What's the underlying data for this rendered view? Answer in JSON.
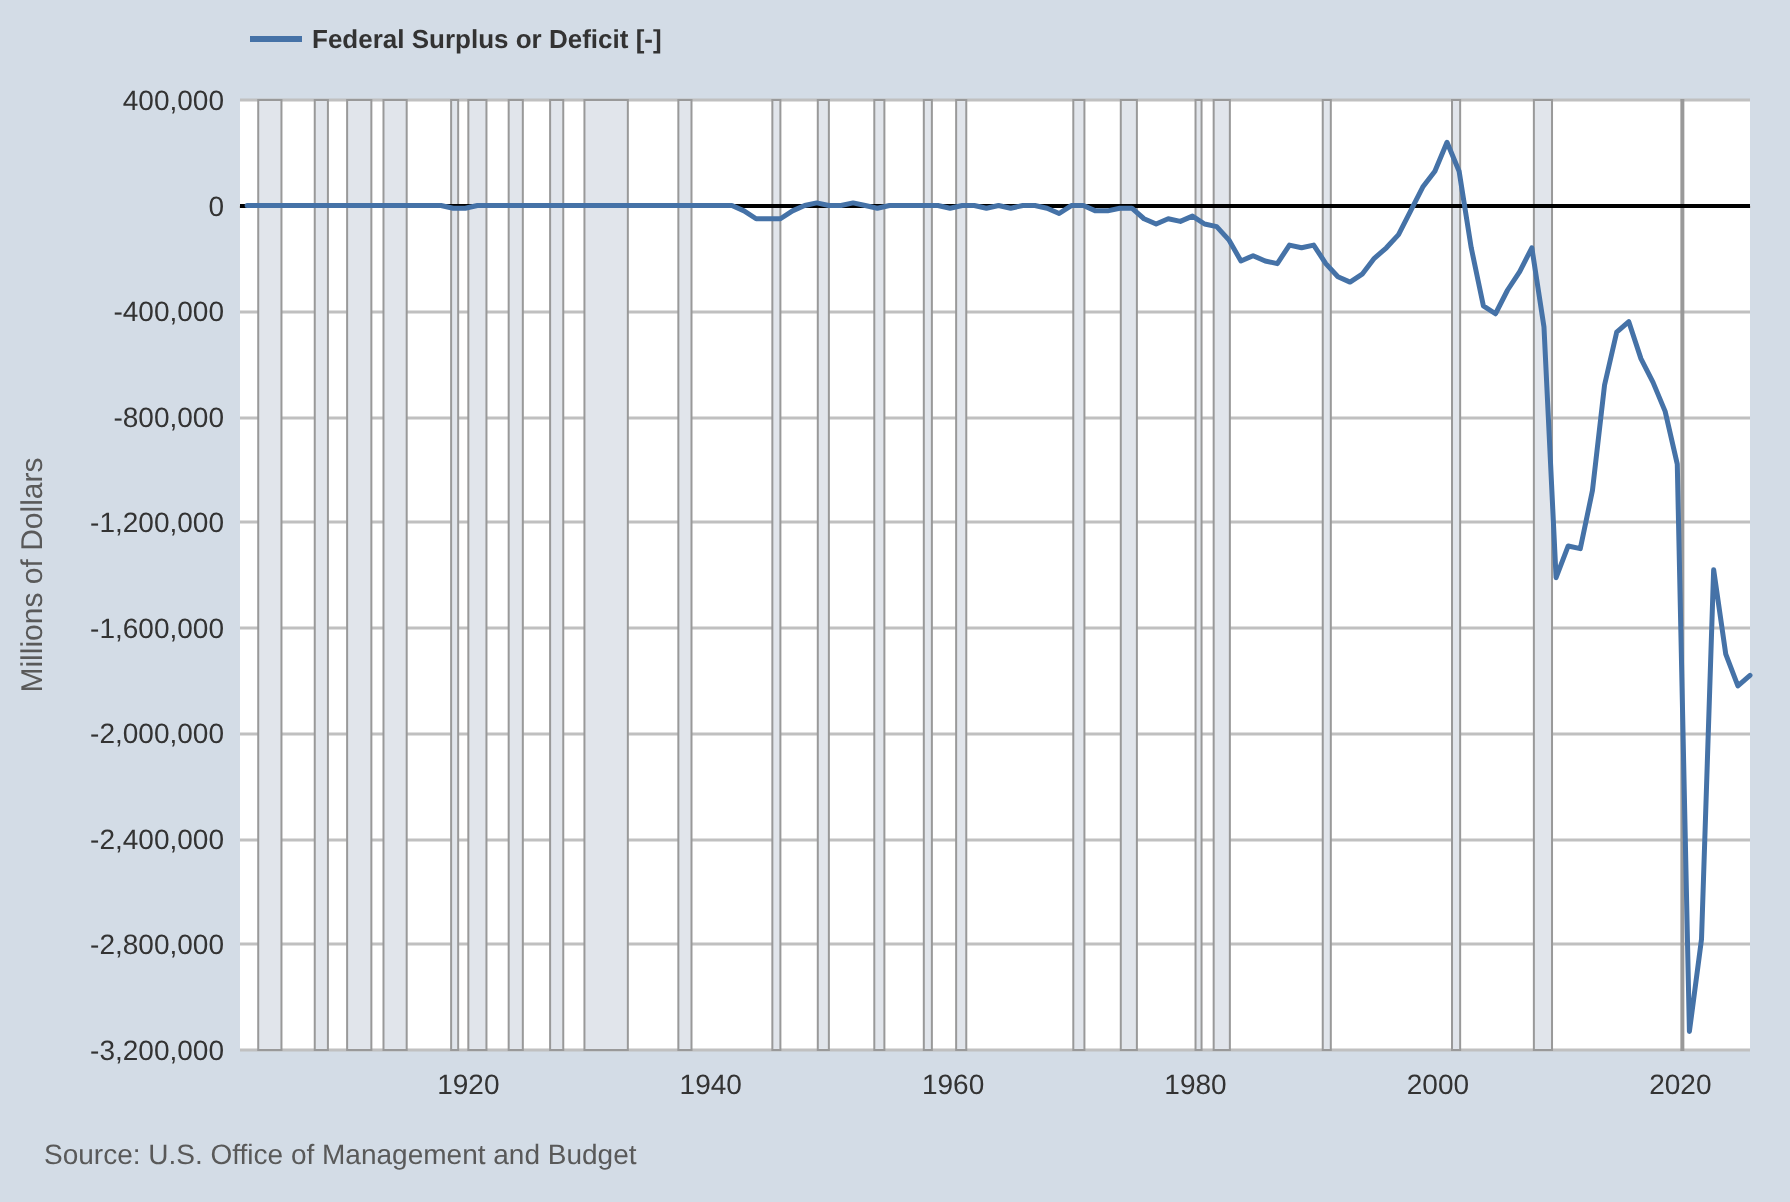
{
  "chart_data": {
    "type": "line",
    "ylabel": "Millions of Dollars",
    "annotations": [
      "Source: U.S. Office of Management and Budget"
    ],
    "x": [
      "1901-10-01",
      "1902-10-01",
      "1903-10-01",
      "1904-10-01",
      "1905-10-01",
      "1906-10-01",
      "1907-10-01",
      "1908-10-01",
      "1909-10-01",
      "1910-10-01",
      "1911-10-01",
      "1912-10-01",
      "1913-10-01",
      "1914-10-01",
      "1915-10-01",
      "1916-10-01",
      "1917-10-01",
      "1918-10-01",
      "1919-10-01",
      "1920-10-01",
      "1921-10-01",
      "1922-10-01",
      "1923-10-01",
      "1924-10-01",
      "1925-10-01",
      "1926-10-01",
      "1927-10-01",
      "1928-10-01",
      "1929-10-01",
      "1930-10-01",
      "1931-10-01",
      "1932-10-01",
      "1933-10-01",
      "1934-10-01",
      "1935-10-01",
      "1936-10-01",
      "1937-10-01",
      "1938-10-01",
      "1939-10-01",
      "1940-10-01",
      "1941-10-01",
      "1942-10-01",
      "1943-10-01",
      "1944-10-01",
      "1945-10-01",
      "1946-10-01",
      "1947-10-01",
      "1948-10-01",
      "1949-10-01",
      "1950-10-01",
      "1951-10-01",
      "1952-10-01",
      "1953-10-01",
      "1954-10-01",
      "1955-10-01",
      "1956-10-01",
      "1957-10-01",
      "1958-10-01",
      "1959-10-01",
      "1960-10-01",
      "1961-10-01",
      "1962-10-01",
      "1963-10-01",
      "1964-10-01",
      "1965-10-01",
      "1966-10-01",
      "1967-10-01",
      "1968-10-01",
      "1969-10-01",
      "1970-10-01",
      "1971-10-01",
      "1972-10-01",
      "1973-10-01",
      "1974-10-01",
      "1975-10-01",
      "1976-10-01",
      "1977-10-01",
      "1978-10-01",
      "1979-10-01",
      "1980-10-01",
      "1981-10-01",
      "1982-10-01",
      "1983-10-01",
      "1984-10-01",
      "1985-10-01",
      "1986-10-01",
      "1987-10-01",
      "1988-10-01",
      "1989-10-01",
      "1990-10-01",
      "1991-10-01",
      "1992-10-01",
      "1993-10-01",
      "1994-10-01",
      "1995-10-01",
      "1996-10-01",
      "1997-10-01",
      "1998-10-01",
      "1999-10-01",
      "2000-10-01",
      "2001-10-01",
      "2002-10-01",
      "2003-10-01",
      "2004-10-01",
      "2005-10-01",
      "2006-10-01",
      "2007-10-01",
      "2008-10-01",
      "2009-10-01",
      "2010-10-01",
      "2011-10-01",
      "2012-10-01",
      "2013-10-01",
      "2014-10-01",
      "2015-10-01",
      "2016-10-01",
      "2017-10-01",
      "2018-10-01",
      "2019-10-01",
      "2020-10-01",
      "2021-10-01",
      "2022-10-01",
      "2023-10-01",
      "2024-10-01",
      "2025-10-01"
    ],
    "series": [
      {
        "name": "Federal Surplus or Deficit [-]",
        "color": "#4572a7",
        "values": [
          0,
          0,
          0,
          0,
          0,
          0,
          0,
          0,
          0,
          0,
          0,
          0,
          0,
          0,
          0,
          0,
          0,
          -10000,
          -10000,
          0,
          0,
          0,
          0,
          0,
          0,
          0,
          0,
          0,
          0,
          0,
          0,
          0,
          0,
          0,
          0,
          0,
          0,
          0,
          0,
          0,
          0,
          -20000,
          -50000,
          -50000,
          -50000,
          -20000,
          0,
          10000,
          0,
          0,
          10000,
          0,
          -10000,
          0,
          0,
          0,
          0,
          0,
          -10000,
          0,
          0,
          -10000,
          0,
          -10000,
          0,
          0,
          -10000,
          -30000,
          0,
          0,
          -20000,
          -20000,
          -10000,
          -10000,
          -50000,
          -70000,
          -50000,
          -60000,
          -40000,
          -70000,
          -80000,
          -130000,
          -210000,
          -190000,
          -210000,
          -220000,
          -150000,
          -160000,
          -150000,
          -220000,
          -270000,
          -290000,
          -260000,
          -200000,
          -160000,
          -110000,
          -20000,
          70000,
          130000,
          240000,
          130000,
          -160000,
          -380000,
          -410000,
          -320000,
          -250000,
          -160000,
          -460000,
          -1410000,
          -1290000,
          -1300000,
          -1080000,
          -680000,
          -480000,
          -440000,
          -580000,
          -670000,
          -780000,
          -980000,
          -3130000,
          -2780000,
          -1380000,
          -1700000,
          -1820000,
          -1780000
        ]
      }
    ],
    "xlim": [
      "1901-03-01",
      "2025-10-01"
    ],
    "xticks": [
      {
        "value": "1920-01-01",
        "label": "1920"
      },
      {
        "value": "1940-01-01",
        "label": "1940"
      },
      {
        "value": "1960-01-01",
        "label": "1960"
      },
      {
        "value": "1980-01-01",
        "label": "1980"
      },
      {
        "value": "2000-01-01",
        "label": "2000"
      },
      {
        "value": "2020-01-01",
        "label": "2020"
      }
    ],
    "ylim": [
      -3200000,
      400000
    ],
    "yticks": [
      {
        "value": -3200000,
        "label": "-3,200,000"
      },
      {
        "value": -2800000,
        "label": "-2,800,000"
      },
      {
        "value": -2400000,
        "label": "-2,400,000"
      },
      {
        "value": -2000000,
        "label": "-2,000,000"
      },
      {
        "value": -1600000,
        "label": "-1,600,000"
      },
      {
        "value": -1200000,
        "label": "-1,200,000"
      },
      {
        "value": -800000,
        "label": "-800,000"
      },
      {
        "value": -400000,
        "label": "-400,000"
      },
      {
        "value": 0,
        "label": "0"
      },
      {
        "value": 400000,
        "label": "400,000"
      }
    ],
    "ref_lines": [
      {
        "axis": "y",
        "value": 0,
        "color": "#000000"
      }
    ],
    "bands": [
      {
        "axis": "x",
        "from": "1902-09-01",
        "to": "1904-08-01",
        "color": "#e1e5eb"
      },
      {
        "axis": "x",
        "from": "1907-05-01",
        "to": "1908-06-01",
        "color": "#e1e5eb"
      },
      {
        "axis": "x",
        "from": "1910-01-01",
        "to": "1912-01-01",
        "color": "#e1e5eb"
      },
      {
        "axis": "x",
        "from": "1913-01-01",
        "to": "1914-12-01",
        "color": "#e1e5eb"
      },
      {
        "axis": "x",
        "from": "1918-08-01",
        "to": "1919-03-01",
        "color": "#e1e5eb"
      },
      {
        "axis": "x",
        "from": "1920-01-01",
        "to": "1921-07-01",
        "color": "#e1e5eb"
      },
      {
        "axis": "x",
        "from": "1923-05-01",
        "to": "1924-07-01",
        "color": "#e1e5eb"
      },
      {
        "axis": "x",
        "from": "1926-10-01",
        "to": "1927-11-01",
        "color": "#e1e5eb"
      },
      {
        "axis": "x",
        "from": "1929-08-01",
        "to": "1933-03-01",
        "color": "#e1e5eb"
      },
      {
        "axis": "x",
        "from": "1937-05-01",
        "to": "1938-06-01",
        "color": "#e1e5eb"
      },
      {
        "axis": "x",
        "from": "1945-02-01",
        "to": "1945-10-01",
        "color": "#e1e5eb"
      },
      {
        "axis": "x",
        "from": "1948-11-01",
        "to": "1949-10-01",
        "color": "#e1e5eb"
      },
      {
        "axis": "x",
        "from": "1953-07-01",
        "to": "1954-05-01",
        "color": "#e1e5eb"
      },
      {
        "axis": "x",
        "from": "1957-08-01",
        "to": "1958-04-01",
        "color": "#e1e5eb"
      },
      {
        "axis": "x",
        "from": "1960-04-01",
        "to": "1961-02-01",
        "color": "#e1e5eb"
      },
      {
        "axis": "x",
        "from": "1969-12-01",
        "to": "1970-11-01",
        "color": "#e1e5eb"
      },
      {
        "axis": "x",
        "from": "1973-11-01",
        "to": "1975-03-01",
        "color": "#e1e5eb"
      },
      {
        "axis": "x",
        "from": "1980-01-01",
        "to": "1980-07-01",
        "color": "#e1e5eb"
      },
      {
        "axis": "x",
        "from": "1981-07-01",
        "to": "1982-11-01",
        "color": "#e1e5eb"
      },
      {
        "axis": "x",
        "from": "1990-07-01",
        "to": "1991-03-01",
        "color": "#e1e5eb"
      },
      {
        "axis": "x",
        "from": "2001-03-01",
        "to": "2001-11-01",
        "color": "#e1e5eb"
      },
      {
        "axis": "x",
        "from": "2007-12-01",
        "to": "2009-06-01",
        "color": "#e1e5eb"
      },
      {
        "axis": "x",
        "from": "2020-02-01",
        "to": "2020-04-01",
        "color": "#e1e5eb"
      }
    ],
    "grid": "y",
    "legend": "top left",
    "marker": "none",
    "line_style": "solid"
  }
}
